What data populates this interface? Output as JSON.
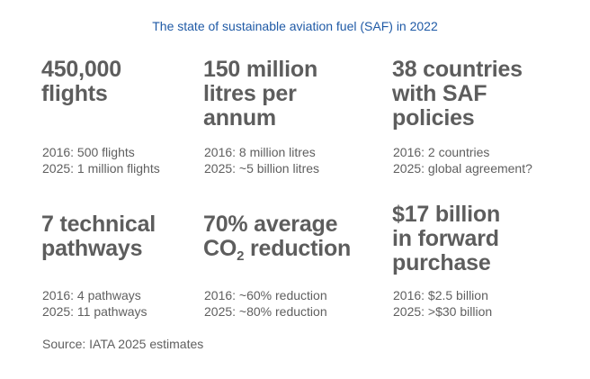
{
  "title": "The state of sustainable aviation fuel (SAF) in 2022",
  "stats": [
    {
      "headline_lines": [
        "450,000",
        "flights"
      ],
      "line_2016": "2016: 500 flights",
      "line_2025": "2025: 1 million flights"
    },
    {
      "headline_lines": [
        "150 million",
        "litres per",
        "annum"
      ],
      "line_2016": "2016: 8 million litres",
      "line_2025": "2025: ~5 billion litres"
    },
    {
      "headline_lines": [
        "38 countries",
        "with SAF",
        "policies"
      ],
      "line_2016": "2016: 2 countries",
      "line_2025": "2025: global agreement?"
    },
    {
      "headline_lines": [
        "7 technical",
        "pathways"
      ],
      "line_2016": "2016: 4 pathways",
      "line_2025": "2025: 11 pathways"
    },
    {
      "headline_line1": "70% average",
      "headline_co": "CO",
      "headline_sub": "2",
      "headline_rest": " reduction",
      "line_2016": "2016: ~60% reduction",
      "line_2025": "2025: ~80% reduction"
    },
    {
      "headline_lines": [
        "$17 billion",
        "in forward",
        "purchase"
      ],
      "line_2016": "2016: $2.5 billion",
      "line_2025": "2025: >$30 billion"
    }
  ],
  "source": "Source: IATA 2025 estimates"
}
